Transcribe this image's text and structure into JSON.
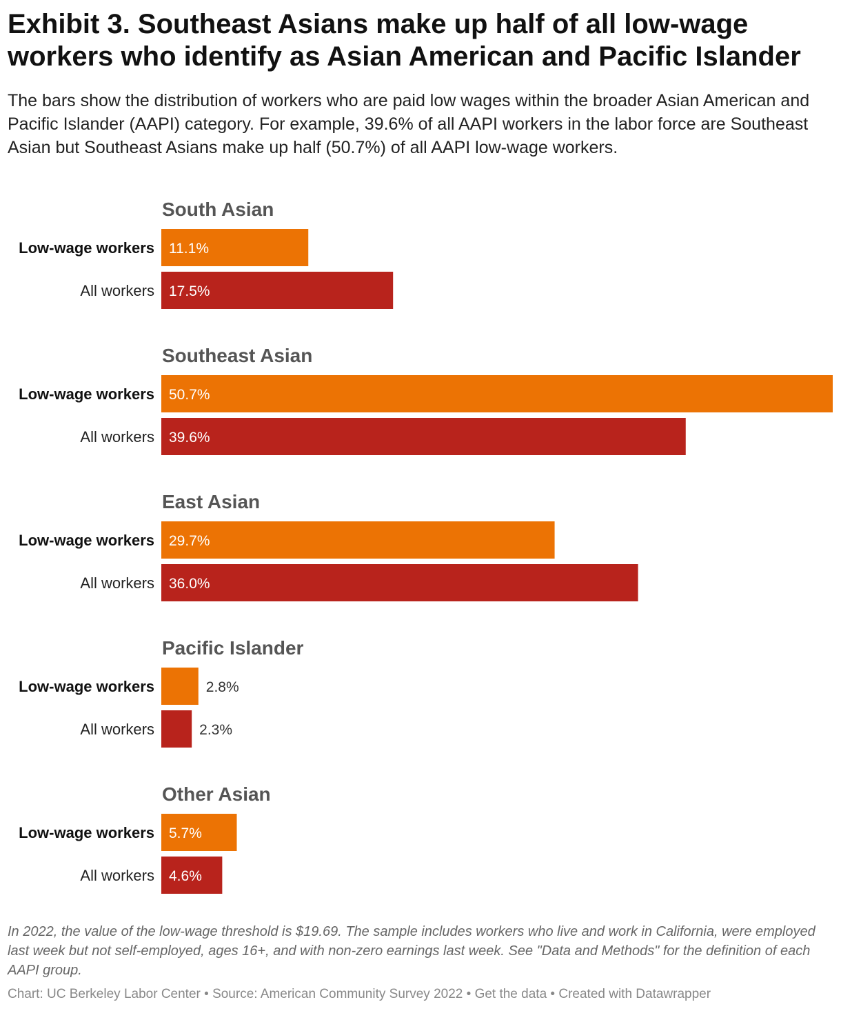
{
  "title": "Exhibit 3. Southeast Asians make up half of all low-wage workers who identify as Asian American and Pacific Islander",
  "subtitle": "The bars show the distribution of workers who are paid low wages within the broader Asian American and Pacific Islander (AAPI) category. For example, 39.6% of all AAPI workers in the labor force are Southeast Asian but Southeast Asians make up half (50.7%) of all AAPI low-wage workers.",
  "notes": "In 2022, the value of the low-wage threshold is $19.69. The sample includes workers who live and work in California, were employed last week but not self-employed, ages 16+, and with non-zero earnings last week. See \"Data and Methods\" for the definition of each AAPI group.",
  "footer": {
    "chart": "Chart: UC Berkeley Labor Center",
    "source": "Source: American Community Survey 2022",
    "get_data": "Get the data",
    "created": "Created with Datawrapper"
  },
  "colors": {
    "low_wage": "#ec7304",
    "all_workers": "#b8231c",
    "group_title": "#555555"
  },
  "chart_data": {
    "type": "bar",
    "orientation": "horizontal",
    "grouped": true,
    "unit": "%",
    "xlim": [
      0,
      50.7
    ],
    "grid": false,
    "series": [
      {
        "name": "Low-wage workers",
        "color": "#ec7304"
      },
      {
        "name": "All workers",
        "color": "#b8231c"
      }
    ],
    "groups": [
      {
        "name": "South Asian",
        "rows": [
          {
            "label": "Low-wage workers",
            "value": 11.1,
            "display": "11.1%"
          },
          {
            "label": "All workers",
            "value": 17.5,
            "display": "17.5%"
          }
        ]
      },
      {
        "name": "Southeast Asian",
        "rows": [
          {
            "label": "Low-wage workers",
            "value": 50.7,
            "display": "50.7%"
          },
          {
            "label": "All workers",
            "value": 39.6,
            "display": "39.6%"
          }
        ]
      },
      {
        "name": "East Asian",
        "rows": [
          {
            "label": "Low-wage workers",
            "value": 29.7,
            "display": "29.7%"
          },
          {
            "label": "All workers",
            "value": 36.0,
            "display": "36.0%"
          }
        ]
      },
      {
        "name": "Pacific Islander",
        "rows": [
          {
            "label": "Low-wage workers",
            "value": 2.8,
            "display": "2.8%"
          },
          {
            "label": "All workers",
            "value": 2.3,
            "display": "2.3%"
          }
        ]
      },
      {
        "name": "Other Asian",
        "rows": [
          {
            "label": "Low-wage workers",
            "value": 5.7,
            "display": "5.7%"
          },
          {
            "label": "All workers",
            "value": 4.6,
            "display": "4.6%"
          }
        ]
      }
    ]
  }
}
